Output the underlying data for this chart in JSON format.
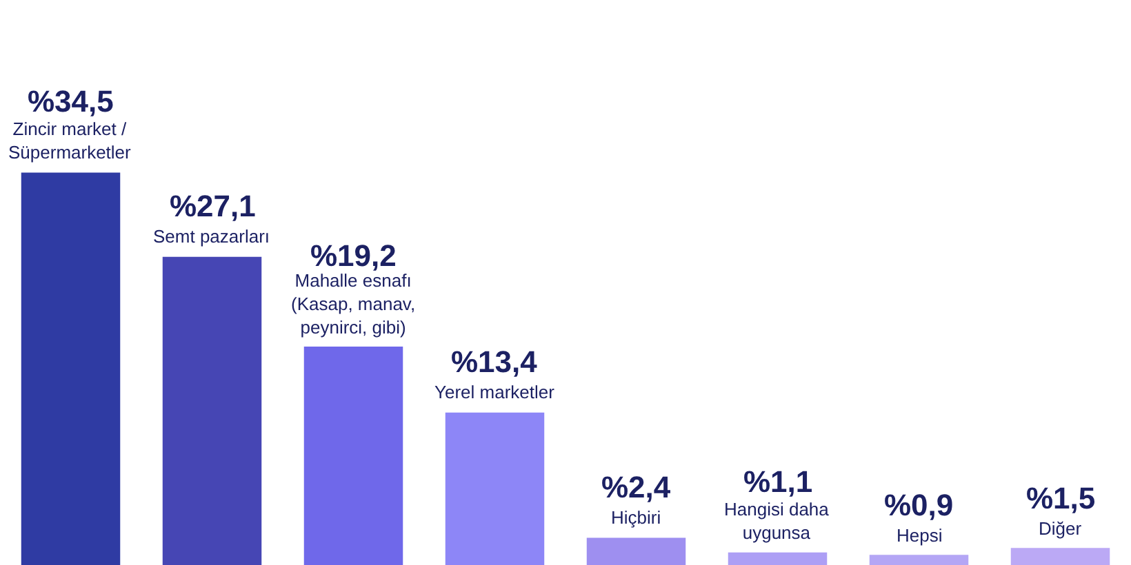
{
  "chart_data": {
    "type": "bar",
    "categories": [
      "Zincir market / Süpermarketler",
      "Semt pazarları",
      "Mahalle esnafı (Kasap, manav, peynirci, gibi)",
      "Yerel marketler",
      "Hiçbiri",
      "Hangisi daha uygunsa",
      "Hepsi",
      "Diğer"
    ],
    "values": [
      34.5,
      27.1,
      19.2,
      13.4,
      2.4,
      1.1,
      0.9,
      1.5
    ],
    "colors": [
      "#2f3ba3",
      "#4646b4",
      "#6f68ea",
      "#8d86f7",
      "#9e8ff0",
      "#ad9ff5",
      "#b4a6f5",
      "#bba9f5"
    ],
    "value_labels": [
      "%34,5",
      "%27,1",
      "%19,2",
      "%13,4",
      "%2,4",
      "%1,1",
      "%0,9",
      "%1,5"
    ]
  }
}
